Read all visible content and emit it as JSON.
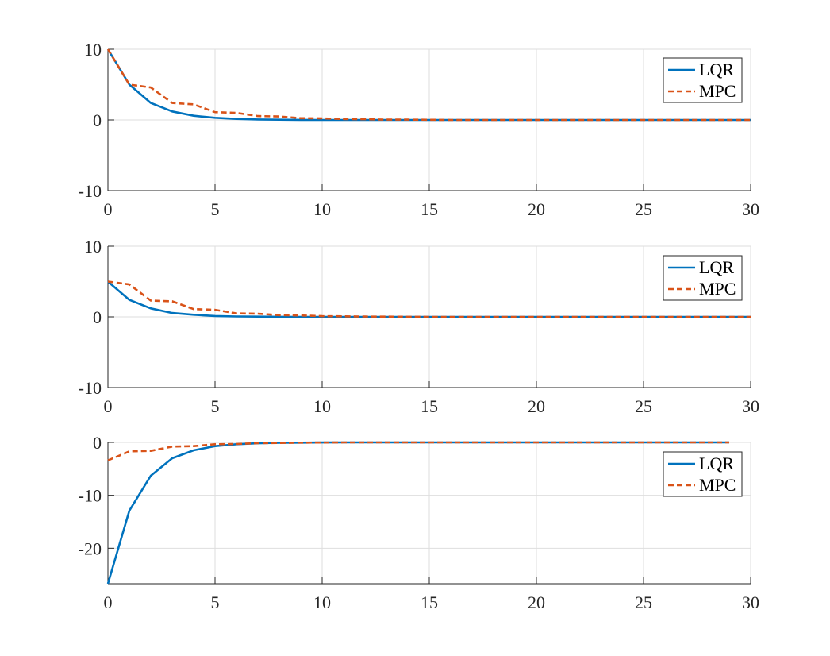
{
  "chart_data": [
    {
      "type": "line",
      "title": "",
      "xlabel": "",
      "ylabel": "",
      "xlim": [
        0,
        30
      ],
      "ylim": [
        -10,
        10
      ],
      "xticks": [
        0,
        5,
        10,
        15,
        20,
        25,
        30
      ],
      "yticks": [
        -10,
        0,
        10
      ],
      "grid": true,
      "legend_position": "top-right",
      "series": [
        {
          "name": "LQR",
          "style": "solid",
          "color": "#0072BD",
          "x": [
            0,
            1,
            2,
            3,
            4,
            5,
            6,
            7,
            8,
            9,
            10,
            11,
            12,
            13,
            14,
            15,
            16,
            17,
            18,
            19,
            20,
            21,
            22,
            23,
            24,
            25,
            26,
            27,
            28,
            29,
            30
          ],
          "y": [
            10,
            5,
            2.4,
            1.2,
            0.6,
            0.3,
            0.15,
            0.07,
            0.03,
            0.01,
            0,
            0,
            0,
            0,
            0,
            0,
            0,
            0,
            0,
            0,
            0,
            0,
            0,
            0,
            0,
            0,
            0,
            0,
            0,
            0,
            0
          ]
        },
        {
          "name": "MPC",
          "style": "dashed",
          "color": "#D95319",
          "x": [
            0,
            1,
            2,
            3,
            4,
            5,
            6,
            7,
            8,
            9,
            10,
            11,
            12,
            13,
            14,
            15,
            16,
            17,
            18,
            19,
            20,
            21,
            22,
            23,
            24,
            25,
            26,
            27,
            28,
            29,
            30
          ],
          "y": [
            10,
            5,
            4.6,
            2.4,
            2.2,
            1.1,
            1.0,
            0.55,
            0.5,
            0.25,
            0.22,
            0.12,
            0.1,
            0.05,
            0.04,
            0.02,
            0,
            0,
            0,
            0,
            0,
            0,
            0,
            0,
            0,
            0,
            0,
            0,
            0,
            0,
            0
          ]
        }
      ]
    },
    {
      "type": "line",
      "title": "",
      "xlabel": "",
      "ylabel": "",
      "xlim": [
        0,
        30
      ],
      "ylim": [
        -10,
        10
      ],
      "xticks": [
        0,
        5,
        10,
        15,
        20,
        25,
        30
      ],
      "yticks": [
        -10,
        0,
        10
      ],
      "grid": true,
      "legend_position": "top-right",
      "series": [
        {
          "name": "LQR",
          "style": "solid",
          "color": "#0072BD",
          "x": [
            0,
            1,
            2,
            3,
            4,
            5,
            6,
            7,
            8,
            9,
            10,
            11,
            12,
            13,
            14,
            15,
            16,
            17,
            18,
            19,
            20,
            21,
            22,
            23,
            24,
            25,
            26,
            27,
            28,
            29,
            30
          ],
          "y": [
            5,
            2.4,
            1.2,
            0.55,
            0.3,
            0.12,
            0.06,
            0.03,
            0.01,
            0,
            0,
            0,
            0,
            0,
            0,
            0,
            0,
            0,
            0,
            0,
            0,
            0,
            0,
            0,
            0,
            0,
            0,
            0,
            0,
            0,
            0
          ]
        },
        {
          "name": "MPC",
          "style": "dashed",
          "color": "#D95319",
          "x": [
            0,
            1,
            2,
            3,
            4,
            5,
            6,
            7,
            8,
            9,
            10,
            11,
            12,
            13,
            14,
            15,
            16,
            17,
            18,
            19,
            20,
            21,
            22,
            23,
            24,
            25,
            26,
            27,
            28,
            29,
            30
          ],
          "y": [
            5,
            4.6,
            2.3,
            2.2,
            1.1,
            1.0,
            0.5,
            0.45,
            0.25,
            0.2,
            0.1,
            0.08,
            0.04,
            0.03,
            0.01,
            0,
            0,
            0,
            0,
            0,
            0,
            0,
            0,
            0,
            0,
            0,
            0,
            0,
            0,
            0,
            0
          ]
        }
      ]
    },
    {
      "type": "line",
      "title": "",
      "xlabel": "",
      "ylabel": "",
      "xlim": [
        0,
        30
      ],
      "ylim": [
        -26.7,
        0
      ],
      "xticks": [
        0,
        5,
        10,
        15,
        20,
        25,
        30
      ],
      "yticks": [
        -20,
        -10,
        0
      ],
      "grid": true,
      "legend_position": "top-right",
      "series": [
        {
          "name": "LQR",
          "style": "solid",
          "color": "#0072BD",
          "x": [
            0,
            1,
            2,
            3,
            4,
            5,
            6,
            7,
            8,
            9,
            10,
            11,
            12,
            13,
            14,
            15,
            16,
            17,
            18,
            19,
            20,
            21,
            22,
            23,
            24,
            25,
            26,
            27,
            28,
            29
          ],
          "y": [
            -26.7,
            -12.9,
            -6.3,
            -3.0,
            -1.5,
            -0.7,
            -0.35,
            -0.17,
            -0.08,
            -0.04,
            -0.02,
            0,
            0,
            0,
            0,
            0,
            0,
            0,
            0,
            0,
            0,
            0,
            0,
            0,
            0,
            0,
            0,
            0,
            0,
            0
          ]
        },
        {
          "name": "MPC",
          "style": "dashed",
          "color": "#D95319",
          "x": [
            0,
            1,
            2,
            3,
            4,
            5,
            6,
            7,
            8,
            9,
            10,
            11,
            12,
            13,
            14,
            15,
            16,
            17,
            18,
            19,
            20,
            21,
            22,
            23,
            24,
            25,
            26,
            27,
            28,
            29
          ],
          "y": [
            -3.4,
            -1.7,
            -1.6,
            -0.8,
            -0.7,
            -0.35,
            -0.3,
            -0.15,
            -0.1,
            -0.05,
            -0.03,
            0,
            0,
            0,
            0,
            0,
            0,
            0,
            0,
            0,
            0,
            0,
            0,
            0,
            0,
            0,
            0,
            0,
            0,
            0
          ]
        }
      ]
    }
  ]
}
